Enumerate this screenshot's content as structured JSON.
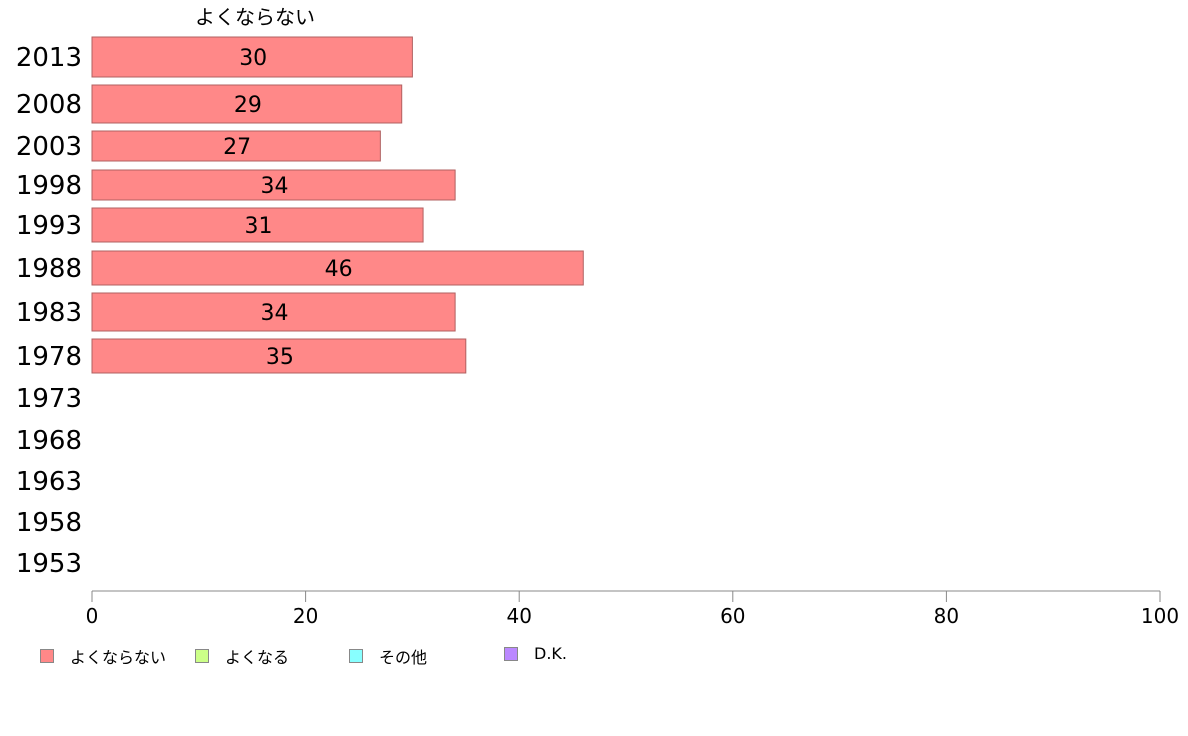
{
  "chart_data": {
    "type": "bar",
    "orientation": "horizontal",
    "series_title": "よくならない",
    "categories": [
      "2013",
      "2008",
      "2003",
      "1998",
      "1993",
      "1988",
      "1983",
      "1978",
      "1973",
      "1968",
      "1963",
      "1958",
      "1953"
    ],
    "series": [
      {
        "name": "よくならない",
        "color": "#ff8888",
        "values": [
          30,
          29,
          27,
          34,
          31,
          46,
          34,
          35,
          null,
          null,
          null,
          null,
          null
        ]
      }
    ],
    "xlim": [
      0,
      100
    ],
    "xticks": [
      0,
      20,
      40,
      60,
      80,
      100
    ],
    "legend": {
      "placement": "bottom-left",
      "items": [
        {
          "label": "よくならない",
          "color": "#ff8888"
        },
        {
          "label": "よくなる",
          "color": "#ccff88"
        },
        {
          "label": "その他",
          "color": "#88ffff"
        },
        {
          "label": "D.K.",
          "color": "#bb88ff"
        }
      ]
    }
  }
}
